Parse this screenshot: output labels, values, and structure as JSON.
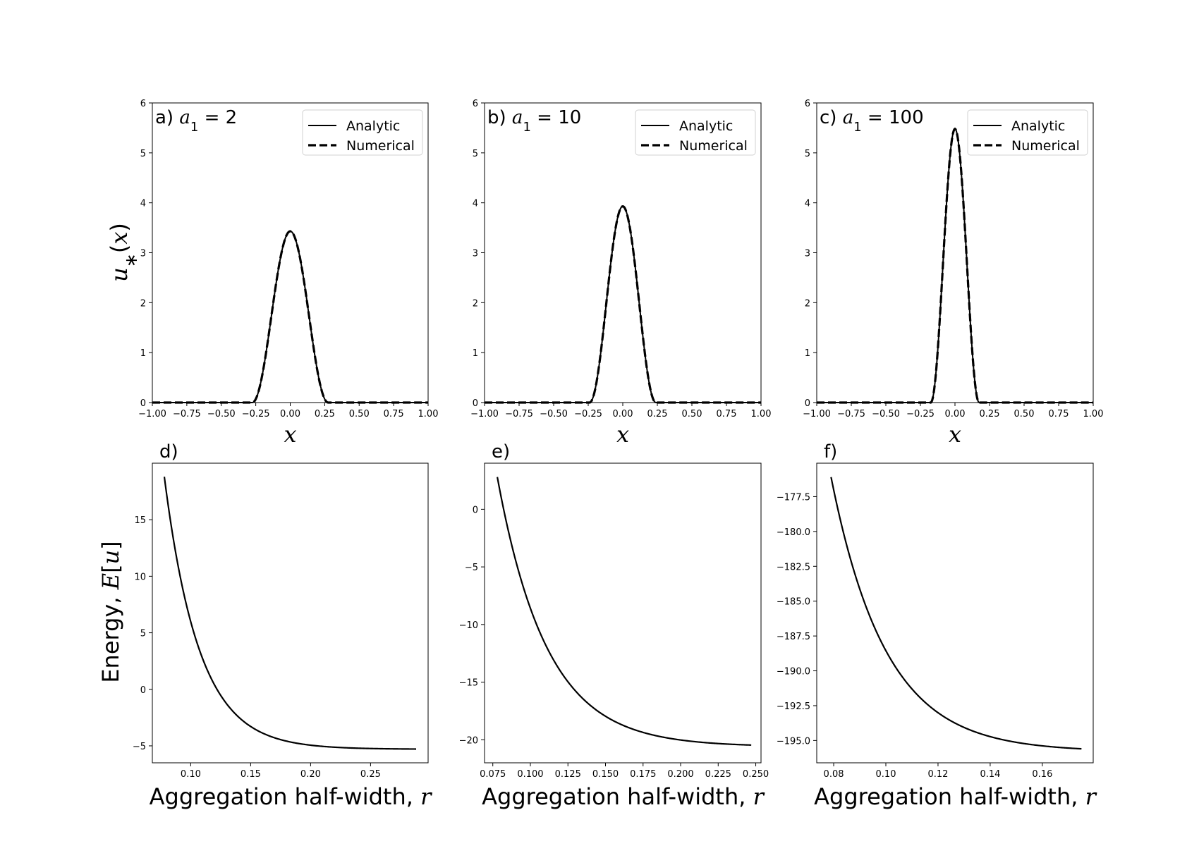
{
  "figure": {
    "ylabel_top": "u_*(x)",
    "ylabel_bottom": "Energy, E[u]"
  },
  "chart_data": [
    {
      "id": "a",
      "type": "line",
      "panel_label": "a)",
      "title_param": "a",
      "title_sub": "1",
      "title_value": "= 2",
      "xlabel": "x",
      "xlim": [
        -1.0,
        1.0
      ],
      "ylim": [
        0,
        6
      ],
      "xticks": [
        "−1.00",
        "−0.75",
        "−0.50",
        "−0.25",
        "0.00",
        "0.25",
        "0.50",
        "0.75",
        "1.00"
      ],
      "yticks": [
        "0",
        "1",
        "2",
        "3",
        "4",
        "5",
        "6"
      ],
      "legend": [
        "Analytic",
        "Numerical"
      ],
      "legend_position": "top-right",
      "series": [
        {
          "name": "Analytic",
          "style": "solid",
          "peak": 3.43,
          "half_width": 0.275
        },
        {
          "name": "Numerical",
          "style": "dashed",
          "peak": 3.43,
          "half_width": 0.275
        }
      ]
    },
    {
      "id": "b",
      "type": "line",
      "panel_label": "b)",
      "title_param": "a",
      "title_sub": "1",
      "title_value": "= 10",
      "xlabel": "x",
      "xlim": [
        -1.0,
        1.0
      ],
      "ylim": [
        0,
        6
      ],
      "xticks": [
        "−1.00",
        "−0.75",
        "−0.50",
        "−0.25",
        "0.00",
        "0.25",
        "0.50",
        "0.75",
        "1.00"
      ],
      "yticks": [
        "0",
        "1",
        "2",
        "3",
        "4",
        "5",
        "6"
      ],
      "legend": [
        "Analytic",
        "Numerical"
      ],
      "legend_position": "top-right",
      "series": [
        {
          "name": "Analytic",
          "style": "solid",
          "peak": 3.93,
          "half_width": 0.24
        },
        {
          "name": "Numerical",
          "style": "dashed",
          "peak": 3.93,
          "half_width": 0.24
        }
      ]
    },
    {
      "id": "c",
      "type": "line",
      "panel_label": "c)",
      "title_param": "a",
      "title_sub": "1",
      "title_value": "= 100",
      "xlabel": "x",
      "xlim": [
        -1.0,
        1.0
      ],
      "ylim": [
        0,
        6
      ],
      "xticks": [
        "−1.00",
        "−0.75",
        "−0.50",
        "−0.25",
        "0.00",
        "0.25",
        "0.50",
        "0.75",
        "1.00"
      ],
      "yticks": [
        "0",
        "1",
        "2",
        "3",
        "4",
        "5",
        "6"
      ],
      "legend": [
        "Analytic",
        "Numerical"
      ],
      "legend_position": "top-right",
      "series": [
        {
          "name": "Analytic",
          "style": "solid",
          "peak": 5.48,
          "half_width": 0.175
        },
        {
          "name": "Numerical",
          "style": "dashed",
          "peak": 5.48,
          "half_width": 0.175
        }
      ]
    },
    {
      "id": "d",
      "type": "line",
      "panel_label": "d)",
      "xlabel": "Aggregation half-width, r",
      "xlim": [
        0.068,
        0.298
      ],
      "ylim": [
        -6.5,
        20
      ],
      "xticks": [
        {
          "v": 0.1,
          "t": "0.10"
        },
        {
          "v": 0.15,
          "t": "0.15"
        },
        {
          "v": 0.2,
          "t": "0.20"
        },
        {
          "v": 0.25,
          "t": "0.25"
        }
      ],
      "yticks": [
        {
          "v": -5,
          "t": "−5"
        },
        {
          "v": 0,
          "t": "0"
        },
        {
          "v": 5,
          "t": "5"
        },
        {
          "v": 10,
          "t": "10"
        },
        {
          "v": 15,
          "t": "15"
        }
      ],
      "series": [
        {
          "name": "Energy",
          "x_start": 0.078,
          "x_end": 0.288,
          "y_start": 18.8,
          "y_end": -5.3,
          "decay": 0.029
        }
      ]
    },
    {
      "id": "e",
      "type": "line",
      "panel_label": "e)",
      "xlabel": "Aggregation half-width, r",
      "xlim": [
        0.0695,
        0.2535
      ],
      "ylim": [
        -22,
        4
      ],
      "xticks": [
        {
          "v": 0.075,
          "t": "0.075"
        },
        {
          "v": 0.1,
          "t": "0.100"
        },
        {
          "v": 0.125,
          "t": "0.125"
        },
        {
          "v": 0.15,
          "t": "0.150"
        },
        {
          "v": 0.175,
          "t": "0.175"
        },
        {
          "v": 0.2,
          "t": "0.200"
        },
        {
          "v": 0.225,
          "t": "0.225"
        },
        {
          "v": 0.25,
          "t": "0.250"
        }
      ],
      "yticks": [
        {
          "v": -20,
          "t": "−20"
        },
        {
          "v": -15,
          "t": "−15"
        },
        {
          "v": -10,
          "t": "−10"
        },
        {
          "v": -5,
          "t": "−5"
        },
        {
          "v": 0,
          "t": "0"
        }
      ],
      "series": [
        {
          "name": "Energy",
          "x_start": 0.078,
          "x_end": 0.247,
          "y_start": 2.8,
          "y_end": -20.6,
          "decay": 0.033
        }
      ]
    },
    {
      "id": "f",
      "type": "line",
      "panel_label": "f)",
      "xlabel": "Aggregation half-width, r",
      "xlim": [
        0.0735,
        0.1795
      ],
      "ylim": [
        -196.6,
        -175.1
      ],
      "xticks": [
        {
          "v": 0.08,
          "t": "0.08"
        },
        {
          "v": 0.1,
          "t": "0.10"
        },
        {
          "v": 0.12,
          "t": "0.12"
        },
        {
          "v": 0.14,
          "t": "0.14"
        },
        {
          "v": 0.16,
          "t": "0.16"
        }
      ],
      "yticks": [
        {
          "v": -195,
          "t": "−195.0"
        },
        {
          "v": -192.5,
          "t": "−192.5"
        },
        {
          "v": -190,
          "t": "−190.0"
        },
        {
          "v": -187.5,
          "t": "−187.5"
        },
        {
          "v": -185,
          "t": "−185.0"
        },
        {
          "v": -182.5,
          "t": "−182.5"
        },
        {
          "v": -180,
          "t": "−180.0"
        },
        {
          "v": -177.5,
          "t": "−177.5"
        }
      ],
      "series": [
        {
          "name": "Energy",
          "x_start": 0.079,
          "x_end": 0.175,
          "y_start": -176.1,
          "y_end": -195.8,
          "decay": 0.021
        }
      ]
    }
  ]
}
